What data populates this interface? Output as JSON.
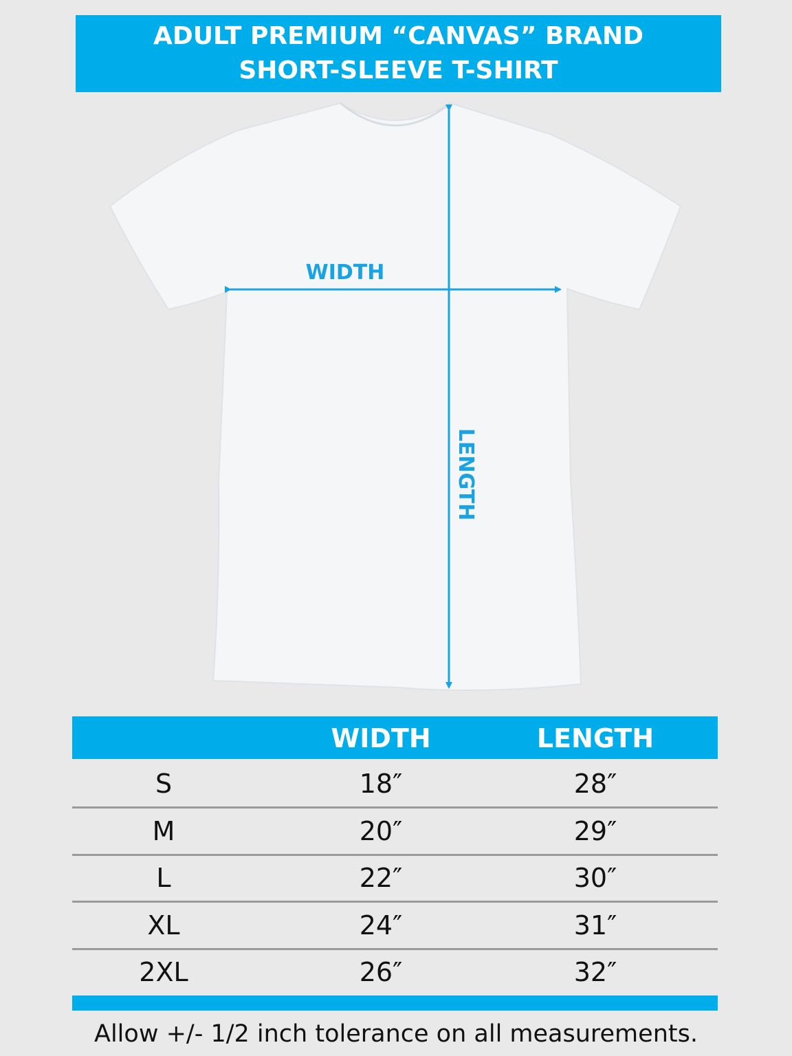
{
  "title": {
    "line1": "ADULT PREMIUM “CANVAS” BRAND",
    "line2": "SHORT-SLEEVE T-SHIRT"
  },
  "diagram": {
    "width_label": "WIDTH",
    "length_label": "LENGTH"
  },
  "colors": {
    "accent": "#00adeb",
    "background": "#e9e9e9"
  },
  "table": {
    "headers": [
      "",
      "WIDTH",
      "LENGTH"
    ],
    "rows": [
      {
        "size": "S",
        "width": "18″",
        "length": "28″"
      },
      {
        "size": "M",
        "width": "20″",
        "length": "29″"
      },
      {
        "size": "L",
        "width": "22″",
        "length": "30″"
      },
      {
        "size": "XL",
        "width": "24″",
        "length": "31″"
      },
      {
        "size": "2XL",
        "width": "26″",
        "length": "32″"
      }
    ]
  },
  "footer": "Allow +/- 1/2 inch tolerance on all measurements."
}
